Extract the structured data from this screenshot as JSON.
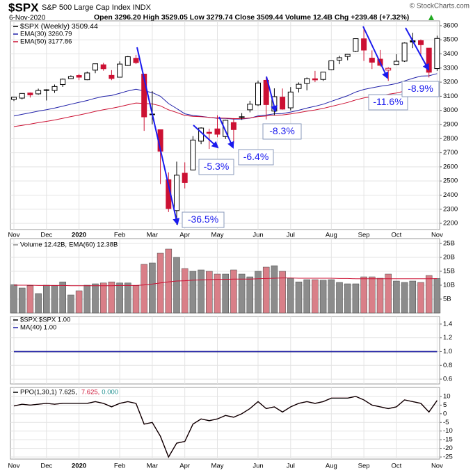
{
  "header": {
    "symbol": "$SPX",
    "name": "S&P 500 Large Cap Index INDX",
    "date": "6-Nov-2020",
    "quote": "Open 3296.20  High 3529.05  Low 3279.74  Close 3509.44  Volume 12.4B  Chg +239.48 (+7.32%)",
    "watermark": "© StockCharts.com"
  },
  "chart_data": [
    {
      "type": "candlestick",
      "name": "$SPX (Weekly) 3509.44",
      "categories": [
        "Nov",
        null,
        null,
        null,
        "Dec",
        null,
        null,
        null,
        "2020",
        null,
        null,
        null,
        null,
        "Feb",
        null,
        null,
        null,
        "Mar",
        null,
        null,
        null,
        "Apr",
        null,
        null,
        null,
        "May",
        null,
        null,
        null,
        null,
        "Jun",
        null,
        null,
        null,
        "Jul",
        null,
        null,
        null,
        null,
        "Aug",
        null,
        null,
        null,
        "Sep",
        null,
        null,
        null,
        "Oct",
        null,
        null,
        null,
        null,
        "Nov"
      ],
      "open": [
        3078,
        3087,
        3123,
        3117,
        3144,
        3141,
        3183,
        3225,
        3247,
        3217,
        3285,
        3323,
        3248,
        3235,
        3318,
        3369,
        3257,
        2974,
        2863,
        2509,
        2290,
        2555,
        2578,
        2782,
        2845,
        2869,
        2815,
        2914,
        2953,
        3004,
        3039,
        3213,
        2995,
        3094,
        3018,
        3155,
        3191,
        3224,
        3219,
        3288,
        3356,
        3382,
        3418,
        3507,
        3370,
        3363,
        3285,
        3325,
        3349,
        3493,
        3494,
        3441,
        3296.2
      ],
      "high": [
        3097,
        3120,
        3127,
        3154,
        3150,
        3183,
        3226,
        3248,
        3259,
        3275,
        3330,
        3337,
        3285,
        3347,
        3385,
        3393,
        3259,
        3137,
        2863,
        2561,
        2637,
        2632,
        2818,
        2880,
        2870,
        2965,
        2934,
        2945,
        2981,
        3068,
        3211,
        3233,
        3156,
        3155,
        3165,
        3198,
        3233,
        3280,
        3272,
        3352,
        3387,
        3399,
        3509,
        3588,
        3425,
        3428,
        3306,
        3398,
        3482,
        3550,
        3502,
        3441,
        3529.05
      ],
      "low": [
        3066,
        3078,
        3091,
        3111,
        3070,
        3124,
        3166,
        3222,
        3214,
        3214,
        3263,
        3281,
        3214,
        3234,
        3315,
        3328,
        2855,
        2901,
        2478,
        2280,
        2191,
        2447,
        2575,
        2761,
        2727,
        2810,
        2797,
        2766,
        2933,
        2986,
        3031,
        2936,
        2965,
        3005,
        3000,
        3127,
        3142,
        3200,
        3209,
        3284,
        3328,
        3355,
        3413,
        3350,
        3293,
        3310,
        3209,
        3323,
        3343,
        3441,
        3397,
        3233,
        3279.74
      ],
      "close": [
        3093,
        3120,
        3110,
        3141,
        3146,
        3169,
        3221,
        3240,
        3235,
        3265,
        3330,
        3295,
        3226,
        3328,
        3380,
        3338,
        2954,
        2972,
        2711,
        2305,
        2541,
        2489,
        2790,
        2875,
        2837,
        2831,
        2930,
        2864,
        2955,
        3044,
        3194,
        3041,
        3097,
        3009,
        3130,
        3185,
        3225,
        3216,
        3271,
        3351,
        3373,
        3397,
        3508,
        3427,
        3341,
        3319,
        3298,
        3348,
        3477,
        3484,
        3465,
        3270,
        3509.44
      ],
      "up_color": "#000000",
      "down_color": "#cc1133",
      "series": [
        {
          "name": "EMA(30) 3260.79",
          "color": "#1f1fa8",
          "values": [
            2960,
            2972,
            2983,
            2995,
            3005,
            3016,
            3030,
            3044,
            3057,
            3070,
            3086,
            3099,
            3106,
            3121,
            3138,
            3150,
            3138,
            3126,
            3100,
            3048,
            3013,
            2976,
            2964,
            2958,
            2950,
            2944,
            2943,
            2938,
            2939,
            2945,
            2961,
            2967,
            2976,
            2978,
            2988,
            3001,
            3016,
            3029,
            3044,
            3064,
            3084,
            3104,
            3130,
            3148,
            3160,
            3171,
            3179,
            3190,
            3209,
            3227,
            3243,
            3245,
            3260.79
          ]
        },
        {
          "name": "EMA(50) 3177.86",
          "color": "#cc1133",
          "values": [
            2885,
            2894,
            2903,
            2913,
            2922,
            2932,
            2944,
            2956,
            2967,
            2979,
            2993,
            3005,
            3014,
            3026,
            3040,
            3052,
            3049,
            3046,
            3032,
            3004,
            2985,
            2964,
            2958,
            2955,
            2950,
            2946,
            2945,
            2942,
            2942,
            2946,
            2956,
            2960,
            2966,
            2968,
            2975,
            2984,
            2994,
            3003,
            3014,
            3028,
            3042,
            3056,
            3074,
            3088,
            3097,
            3106,
            3114,
            3123,
            3137,
            3151,
            3164,
            3168,
            3177.86
          ]
        }
      ],
      "ylim": [
        2156,
        3634
      ],
      "yticks": [
        2200,
        2300,
        2400,
        2500,
        2600,
        2700,
        2800,
        2900,
        3000,
        3100,
        3200,
        3300,
        3400,
        3500,
        3600
      ],
      "grid": true,
      "annotations": [
        "-36.5%",
        "-5.3%",
        "-6.4%",
        "-8.3%",
        "-11.6%",
        "-8.9%"
      ],
      "annotation_color": "#1a1aee"
    },
    {
      "type": "bar",
      "series": [
        {
          "name": "Volume 12.42B,",
          "color": "#8c8c8c",
          "values": [
            10.2,
            9.0,
            9.8,
            7.0,
            10.0,
            9.8,
            11.2,
            6.5,
            8.0,
            10.0,
            10.5,
            10.8,
            11.2,
            10.8,
            10.8,
            9.8,
            17.5,
            18.0,
            21.5,
            23.0,
            20.0,
            16.0,
            15.0,
            15.5,
            15.0,
            14.0,
            14.0,
            15.5,
            14.0,
            13.0,
            15.0,
            16.5,
            17.0,
            15.0,
            12.5,
            11.2,
            12.0,
            12.0,
            11.8,
            12.0,
            11.0,
            10.5,
            10.5,
            13.0,
            13.0,
            12.5,
            14.0,
            11.5,
            11.0,
            11.5,
            11.0,
            13.5,
            12.42
          ]
        },
        {
          "name": "EMA(60) 12.38B",
          "color": "#cc1133",
          "values": [
            10.0,
            10.0,
            10.0,
            9.9,
            9.9,
            9.9,
            9.9,
            9.8,
            9.8,
            9.8,
            9.8,
            9.8,
            9.8,
            9.9,
            9.9,
            9.9,
            10.1,
            10.4,
            10.8,
            11.2,
            11.5,
            11.6,
            11.8,
            11.9,
            12.0,
            12.1,
            12.1,
            12.2,
            12.2,
            12.2,
            12.3,
            12.4,
            12.5,
            12.6,
            12.6,
            12.5,
            12.5,
            12.5,
            12.5,
            12.5,
            12.4,
            12.4,
            12.3,
            12.3,
            12.3,
            12.3,
            12.3,
            12.3,
            12.3,
            12.3,
            12.3,
            12.3,
            12.38
          ]
        }
      ],
      "down_color": "#d97f88",
      "ylim": [
        0,
        26.75
      ],
      "yticks": [
        {
          "value": 5,
          "label": "5B"
        },
        {
          "value": 10,
          "label": "10B"
        },
        {
          "value": 15,
          "label": "15B"
        },
        {
          "value": 20,
          "label": "20B"
        },
        {
          "value": 25,
          "label": "25B"
        }
      ],
      "grid": true
    },
    {
      "type": "line",
      "series": [
        {
          "name": "$SPX:$SPX 1.00",
          "color": "#000000",
          "values": [
            1,
            1,
            1,
            1,
            1,
            1,
            1,
            1,
            1,
            1,
            1,
            1,
            1,
            1,
            1,
            1,
            1,
            1,
            1,
            1,
            1,
            1,
            1,
            1,
            1,
            1,
            1,
            1,
            1,
            1,
            1,
            1,
            1,
            1,
            1,
            1,
            1,
            1,
            1,
            1,
            1,
            1,
            1,
            1,
            1,
            1,
            1,
            1,
            1,
            1,
            1,
            1,
            1
          ]
        },
        {
          "name": "MA(40) 1.00",
          "color": "#1f1fa8",
          "values": [
            1,
            1,
            1,
            1,
            1,
            1,
            1,
            1,
            1,
            1,
            1,
            1,
            1,
            1,
            1,
            1,
            1,
            1,
            1,
            1,
            1,
            1,
            1,
            1,
            1,
            1,
            1,
            1,
            1,
            1,
            1,
            1,
            1,
            1,
            1,
            1,
            1,
            1,
            1,
            1,
            1,
            1,
            1,
            1,
            1,
            1,
            1,
            1,
            1,
            1,
            1,
            1,
            1
          ]
        }
      ],
      "ylim": [
        0.53,
        1.51
      ],
      "yticks": [
        0.6,
        0.8,
        {
          "value": 1,
          "label": "1.0"
        },
        1.2,
        1.4
      ],
      "grid": true
    },
    {
      "type": "line",
      "series": [
        {
          "name": "7.625,",
          "color": "#cc1133",
          "values": [
            4.5,
            5.5,
            5,
            5.5,
            6,
            5.5,
            6,
            6,
            6,
            6,
            7,
            6,
            4,
            6,
            7,
            6,
            -6,
            -5,
            -13,
            -25,
            -17,
            -16,
            -6,
            -3,
            -4,
            -3,
            -1,
            -2,
            0,
            3,
            7,
            3,
            4,
            1,
            4,
            6,
            7,
            6,
            7,
            9,
            9,
            9,
            10,
            8,
            5,
            4,
            3,
            4,
            8,
            7,
            6,
            1,
            7.625
          ]
        },
        {
          "name": "PPO(1,30,1) 7.625,",
          "color": "#000000",
          "values": [
            4.5,
            5.5,
            5,
            5.5,
            6,
            5.5,
            6,
            6,
            6,
            6,
            7,
            6,
            4,
            6,
            7,
            6,
            -6,
            -5,
            -13,
            -25,
            -17,
            -16,
            -6,
            -3,
            -4,
            -3,
            -1,
            -2,
            0,
            3,
            7,
            3,
            4,
            1,
            4,
            6,
            7,
            6,
            7,
            9,
            9,
            9,
            10,
            8,
            5,
            4,
            3,
            4,
            8,
            7,
            6,
            1,
            7.625
          ]
        }
      ],
      "hist_label": "0.000",
      "hist_color": "#1f8f8f",
      "ylim": [
        -26.2,
        15.2
      ],
      "yticks": [
        -25,
        -20,
        -15,
        -10,
        -5,
        0,
        5,
        10
      ],
      "grid": true
    }
  ]
}
